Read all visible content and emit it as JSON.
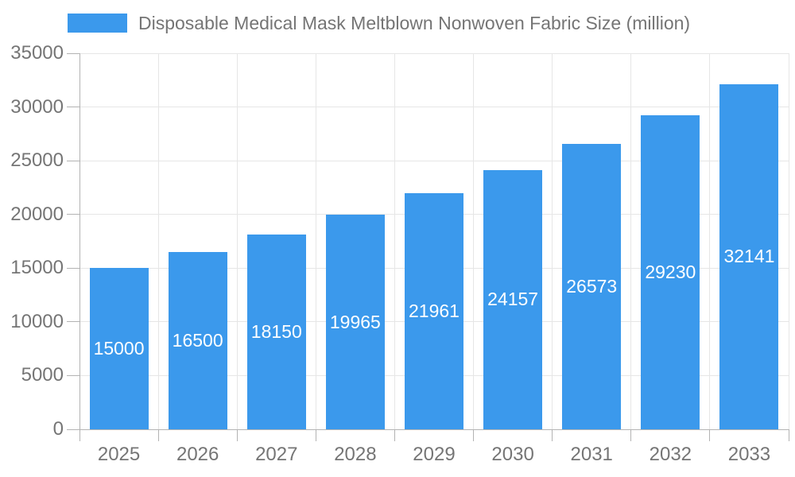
{
  "legend": {
    "label": "Disposable Medical Mask Meltblown Nonwoven Fabric Size (million)"
  },
  "colors": {
    "bar": "#3B99EC",
    "grid": "#e6e6e6",
    "axis": "#b3b3b3",
    "tick": "#b3b3b3",
    "text": "#757575",
    "bar_label": "#ffffff",
    "background": "#ffffff"
  },
  "chart_data": {
    "type": "bar",
    "title": "Disposable Medical Mask Meltblown Nonwoven Fabric Size (million)",
    "categories": [
      "2025",
      "2026",
      "2027",
      "2028",
      "2029",
      "2030",
      "2031",
      "2032",
      "2033"
    ],
    "values": [
      15000,
      16500,
      18150,
      19965,
      21961,
      24157,
      26573,
      29230,
      32141
    ],
    "xlabel": "",
    "ylabel": "",
    "ylim": [
      0,
      35000
    ],
    "ytick_step": 5000,
    "ytick_labels": [
      "0",
      "5000",
      "10000",
      "15000",
      "20000",
      "25000",
      "30000",
      "35000"
    ],
    "grid": true,
    "legend_position": "top-left",
    "value_labels": "inside-center"
  }
}
